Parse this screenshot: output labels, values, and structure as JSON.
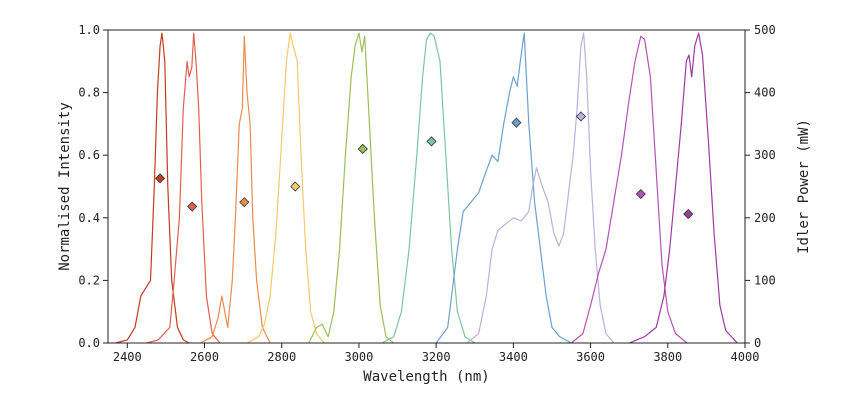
{
  "chart_data": {
    "type": "line",
    "title": "",
    "xlabel": "Wavelength (nm)",
    "ylabel": "Normalised Intensity",
    "y2label": "Idler Power (mW)",
    "xlim": [
      2350,
      4000
    ],
    "ylim": [
      0,
      1.0
    ],
    "y2lim": [
      0,
      500
    ],
    "x_ticks": [
      2400,
      2600,
      2800,
      3000,
      3200,
      3400,
      3600,
      3800,
      4000
    ],
    "y_ticks": [
      0.0,
      0.2,
      0.4,
      0.6,
      0.8,
      1.0
    ],
    "y_tick_labels": [
      "0.0",
      "0.2",
      "0.4",
      "0.6",
      "0.8",
      "1.0"
    ],
    "y2_ticks": [
      0,
      100,
      200,
      300,
      400,
      500
    ],
    "grid": false,
    "legend": "none",
    "spectra": [
      {
        "color": "#c23b22",
        "points": [
          [
            2370,
            0
          ],
          [
            2400,
            0.01
          ],
          [
            2420,
            0.05
          ],
          [
            2435,
            0.15
          ],
          [
            2450,
            0.18
          ],
          [
            2460,
            0.2
          ],
          [
            2470,
            0.5
          ],
          [
            2478,
            0.8
          ],
          [
            2485,
            0.95
          ],
          [
            2490,
            0.99
          ],
          [
            2497,
            0.9
          ],
          [
            2505,
            0.5
          ],
          [
            2515,
            0.2
          ],
          [
            2530,
            0.05
          ],
          [
            2545,
            0.01
          ],
          [
            2560,
            0
          ]
        ]
      },
      {
        "color": "#e06050",
        "points": [
          [
            2450,
            0
          ],
          [
            2480,
            0.01
          ],
          [
            2510,
            0.05
          ],
          [
            2520,
            0.18
          ],
          [
            2535,
            0.4
          ],
          [
            2545,
            0.75
          ],
          [
            2555,
            0.9
          ],
          [
            2560,
            0.85
          ],
          [
            2567,
            0.88
          ],
          [
            2572,
            0.99
          ],
          [
            2578,
            0.9
          ],
          [
            2585,
            0.75
          ],
          [
            2593,
            0.45
          ],
          [
            2605,
            0.15
          ],
          [
            2620,
            0.03
          ],
          [
            2640,
            0
          ]
        ]
      },
      {
        "color": "#f08a4b",
        "points": [
          [
            2590,
            0
          ],
          [
            2620,
            0.02
          ],
          [
            2635,
            0.08
          ],
          [
            2645,
            0.15
          ],
          [
            2660,
            0.05
          ],
          [
            2672,
            0.2
          ],
          [
            2680,
            0.4
          ],
          [
            2690,
            0.7
          ],
          [
            2698,
            0.75
          ],
          [
            2703,
            0.98
          ],
          [
            2710,
            0.8
          ],
          [
            2718,
            0.7
          ],
          [
            2725,
            0.4
          ],
          [
            2735,
            0.2
          ],
          [
            2750,
            0.05
          ],
          [
            2770,
            0
          ]
        ]
      },
      {
        "color": "#f5c96a",
        "points": [
          [
            2710,
            0
          ],
          [
            2740,
            0.02
          ],
          [
            2755,
            0.06
          ],
          [
            2770,
            0.15
          ],
          [
            2785,
            0.35
          ],
          [
            2800,
            0.65
          ],
          [
            2812,
            0.9
          ],
          [
            2822,
            0.99
          ],
          [
            2830,
            0.95
          ],
          [
            2840,
            0.9
          ],
          [
            2850,
            0.6
          ],
          [
            2862,
            0.3
          ],
          [
            2875,
            0.1
          ],
          [
            2890,
            0.03
          ],
          [
            2910,
            0
          ]
        ]
      },
      {
        "color": "#9bbf5a",
        "points": [
          [
            2870,
            0
          ],
          [
            2890,
            0.05
          ],
          [
            2905,
            0.06
          ],
          [
            2920,
            0.02
          ],
          [
            2935,
            0.1
          ],
          [
            2950,
            0.3
          ],
          [
            2965,
            0.6
          ],
          [
            2980,
            0.85
          ],
          [
            2990,
            0.95
          ],
          [
            3000,
            0.99
          ],
          [
            3008,
            0.93
          ],
          [
            3015,
            0.98
          ],
          [
            3025,
            0.75
          ],
          [
            3040,
            0.4
          ],
          [
            3055,
            0.12
          ],
          [
            3070,
            0.02
          ],
          [
            3090,
            0
          ]
        ]
      },
      {
        "color": "#7dc4a2",
        "points": [
          [
            3060,
            0
          ],
          [
            3090,
            0.02
          ],
          [
            3110,
            0.1
          ],
          [
            3130,
            0.3
          ],
          [
            3150,
            0.6
          ],
          [
            3165,
            0.85
          ],
          [
            3175,
            0.97
          ],
          [
            3185,
            0.99
          ],
          [
            3195,
            0.98
          ],
          [
            3210,
            0.9
          ],
          [
            3225,
            0.6
          ],
          [
            3240,
            0.3
          ],
          [
            3255,
            0.1
          ],
          [
            3275,
            0.02
          ],
          [
            3300,
            0
          ]
        ]
      },
      {
        "color": "#6f9fd0",
        "points": [
          [
            3200,
            0
          ],
          [
            3230,
            0.05
          ],
          [
            3255,
            0.3
          ],
          [
            3270,
            0.42
          ],
          [
            3290,
            0.45
          ],
          [
            3310,
            0.48
          ],
          [
            3330,
            0.55
          ],
          [
            3345,
            0.6
          ],
          [
            3360,
            0.58
          ],
          [
            3375,
            0.7
          ],
          [
            3390,
            0.8
          ],
          [
            3400,
            0.85
          ],
          [
            3410,
            0.82
          ],
          [
            3418,
            0.9
          ],
          [
            3428,
            0.99
          ],
          [
            3440,
            0.7
          ],
          [
            3455,
            0.45
          ],
          [
            3470,
            0.3
          ],
          [
            3485,
            0.15
          ],
          [
            3500,
            0.05
          ],
          [
            3520,
            0.02
          ],
          [
            3550,
            0
          ]
        ]
      },
      {
        "color": "#b8b2dc",
        "points": [
          [
            3280,
            0
          ],
          [
            3310,
            0.03
          ],
          [
            3330,
            0.15
          ],
          [
            3345,
            0.3
          ],
          [
            3360,
            0.36
          ],
          [
            3380,
            0.38
          ],
          [
            3400,
            0.4
          ],
          [
            3420,
            0.39
          ],
          [
            3440,
            0.42
          ],
          [
            3450,
            0.5
          ],
          [
            3460,
            0.56
          ],
          [
            3475,
            0.5
          ],
          [
            3490,
            0.45
          ],
          [
            3505,
            0.35
          ],
          [
            3518,
            0.31
          ],
          [
            3530,
            0.35
          ],
          [
            3545,
            0.5
          ],
          [
            3555,
            0.6
          ],
          [
            3565,
            0.75
          ],
          [
            3575,
            0.95
          ],
          [
            3582,
            0.99
          ],
          [
            3590,
            0.85
          ],
          [
            3600,
            0.55
          ],
          [
            3612,
            0.3
          ],
          [
            3625,
            0.12
          ],
          [
            3640,
            0.03
          ],
          [
            3660,
            0
          ]
        ]
      },
      {
        "color": "#b254b2",
        "points": [
          [
            3550,
            0
          ],
          [
            3580,
            0.03
          ],
          [
            3600,
            0.12
          ],
          [
            3620,
            0.22
          ],
          [
            3640,
            0.3
          ],
          [
            3660,
            0.45
          ],
          [
            3680,
            0.6
          ],
          [
            3700,
            0.78
          ],
          [
            3715,
            0.9
          ],
          [
            3730,
            0.98
          ],
          [
            3740,
            0.97
          ],
          [
            3755,
            0.85
          ],
          [
            3770,
            0.55
          ],
          [
            3785,
            0.25
          ],
          [
            3800,
            0.1
          ],
          [
            3820,
            0.03
          ],
          [
            3850,
            0
          ]
        ]
      },
      {
        "color": "#9c3b9c",
        "points": [
          [
            3700,
            0
          ],
          [
            3740,
            0.02
          ],
          [
            3770,
            0.05
          ],
          [
            3790,
            0.15
          ],
          [
            3805,
            0.3
          ],
          [
            3820,
            0.5
          ],
          [
            3835,
            0.7
          ],
          [
            3848,
            0.9
          ],
          [
            3855,
            0.92
          ],
          [
            3862,
            0.85
          ],
          [
            3870,
            0.95
          ],
          [
            3880,
            0.99
          ],
          [
            3890,
            0.92
          ],
          [
            3905,
            0.65
          ],
          [
            3920,
            0.35
          ],
          [
            3935,
            0.12
          ],
          [
            3950,
            0.04
          ],
          [
            3980,
            0
          ]
        ]
      }
    ],
    "idler_power": {
      "points": [
        {
          "x": 2485,
          "mW": 263,
          "color": "#c23b22"
        },
        {
          "x": 2568,
          "mW": 218,
          "color": "#e06050"
        },
        {
          "x": 2703,
          "mW": 225,
          "color": "#f08a4b"
        },
        {
          "x": 2835,
          "mW": 250,
          "color": "#f5c96a"
        },
        {
          "x": 3010,
          "mW": 310,
          "color": "#9bbf5a"
        },
        {
          "x": 3188,
          "mW": 322,
          "color": "#7dc4a2"
        },
        {
          "x": 3408,
          "mW": 352,
          "color": "#6f9fd0"
        },
        {
          "x": 3575,
          "mW": 362,
          "color": "#b8b2dc"
        },
        {
          "x": 3730,
          "mW": 238,
          "color": "#b254b2"
        },
        {
          "x": 3853,
          "mW": 206,
          "color": "#9c3b9c"
        }
      ]
    }
  }
}
